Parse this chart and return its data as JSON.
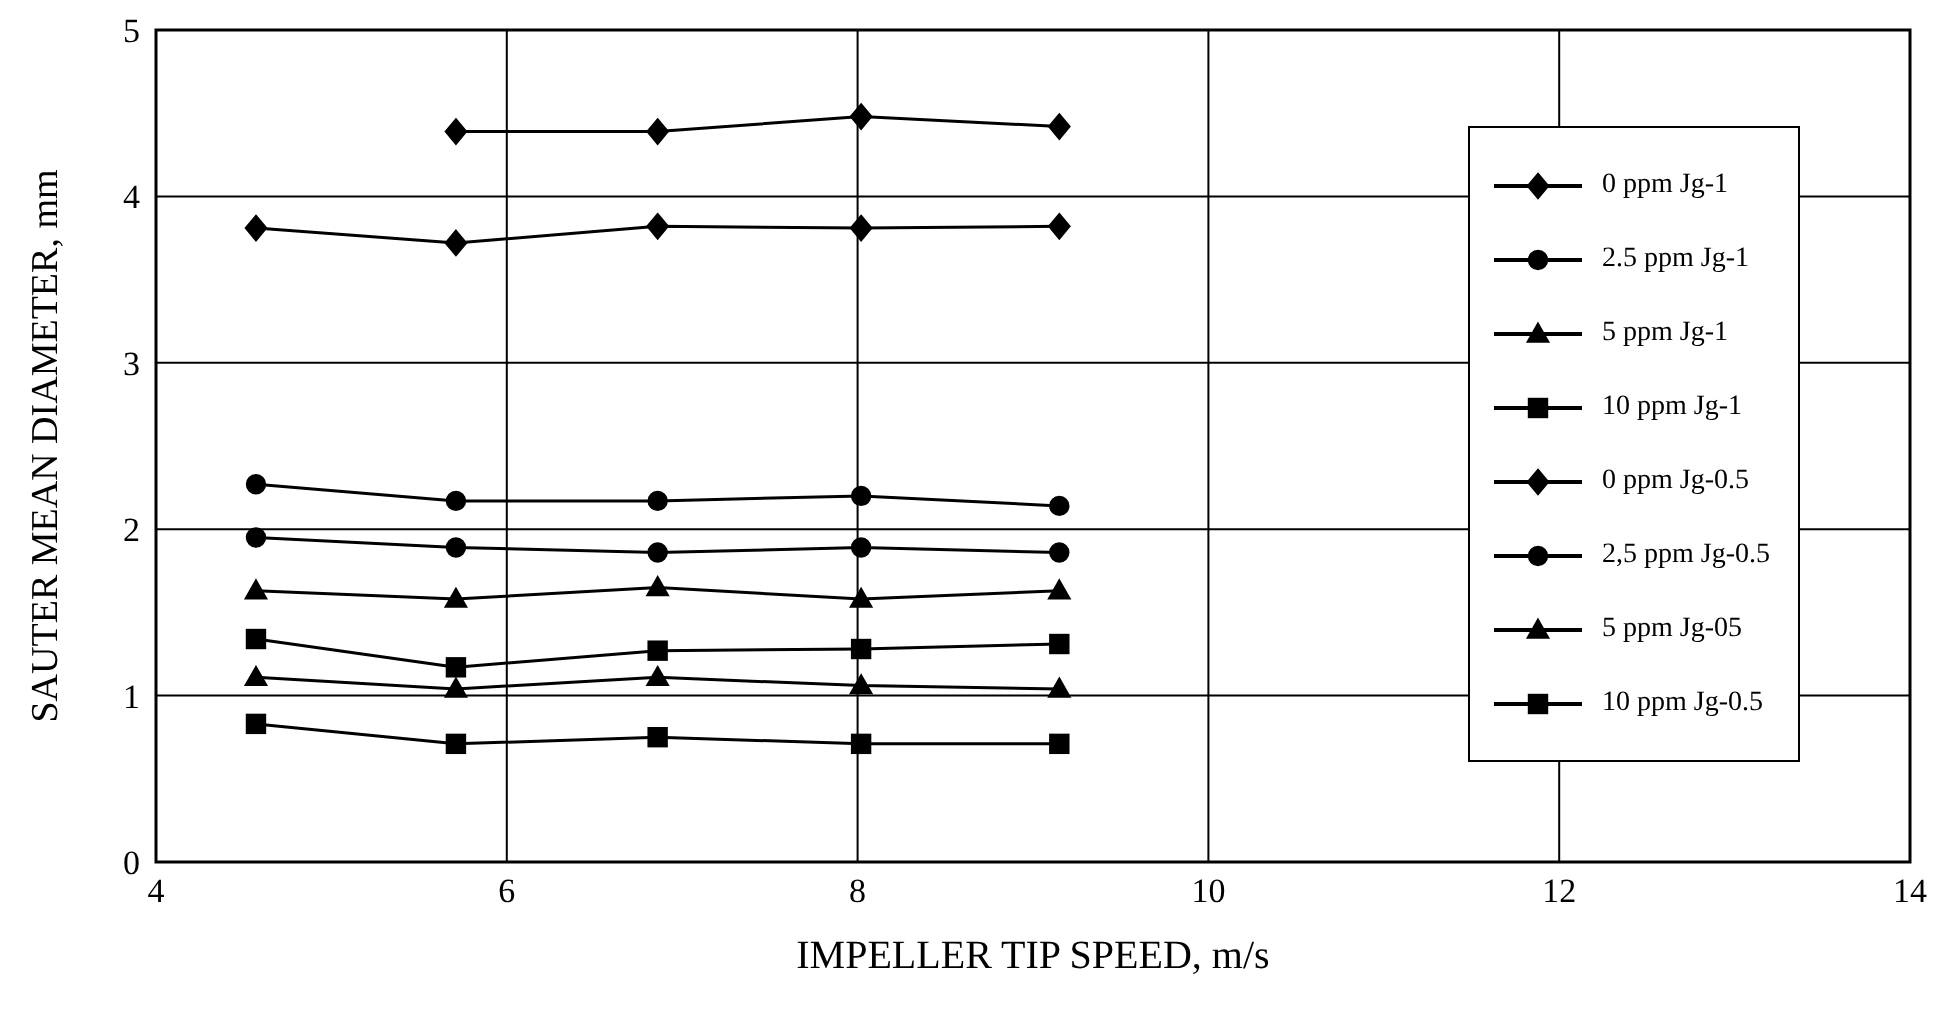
{
  "chart_data": {
    "type": "line",
    "xlabel": "IMPELLER TIP SPEED, m/s",
    "ylabel": "SAUTER MEAN DIAMETER, mm",
    "x": [
      4.57,
      5.71,
      6.86,
      8.02,
      9.15
    ],
    "xlim": [
      4,
      14
    ],
    "xticks": [
      4,
      6,
      8,
      10,
      12,
      14
    ],
    "ylim": [
      0,
      5
    ],
    "yticks": [
      0,
      1,
      2,
      3,
      4,
      5
    ],
    "grid": true,
    "legend": "top right",
    "line_style": "solid",
    "series": [
      {
        "name": "0 ppm Jg-1",
        "color": "#000000",
        "marker": "diamond",
        "values": [
          null,
          4.39,
          4.39,
          4.48,
          4.42
        ]
      },
      {
        "name": "2.5 ppm Jg-1",
        "color": "#000000",
        "marker": "circle",
        "values": [
          2.27,
          2.17,
          2.17,
          2.2,
          2.14
        ]
      },
      {
        "name": "5 ppm Jg-1",
        "color": "#000000",
        "marker": "triangle",
        "values": [
          1.63,
          1.58,
          1.65,
          1.58,
          1.63
        ]
      },
      {
        "name": "10 ppm Jg-1",
        "color": "#000000",
        "marker": "square",
        "values": [
          1.34,
          1.17,
          1.27,
          1.28,
          1.31
        ]
      },
      {
        "name": "0 ppm Jg-0.5",
        "color": "#000000",
        "marker": "diamond",
        "values": [
          3.81,
          3.72,
          3.82,
          3.81,
          3.82
        ]
      },
      {
        "name": "2,5 ppm Jg-0.5",
        "color": "#000000",
        "marker": "circle",
        "values": [
          1.95,
          1.89,
          1.86,
          1.89,
          1.86
        ]
      },
      {
        "name": "5 ppm Jg-05",
        "color": "#000000",
        "marker": "triangle",
        "values": [
          1.11,
          1.04,
          1.11,
          1.06,
          1.04
        ]
      },
      {
        "name": "10 ppm Jg-0.5",
        "color": "#000000",
        "marker": "square",
        "values": [
          0.83,
          0.71,
          0.75,
          0.71,
          0.71
        ]
      }
    ]
  }
}
